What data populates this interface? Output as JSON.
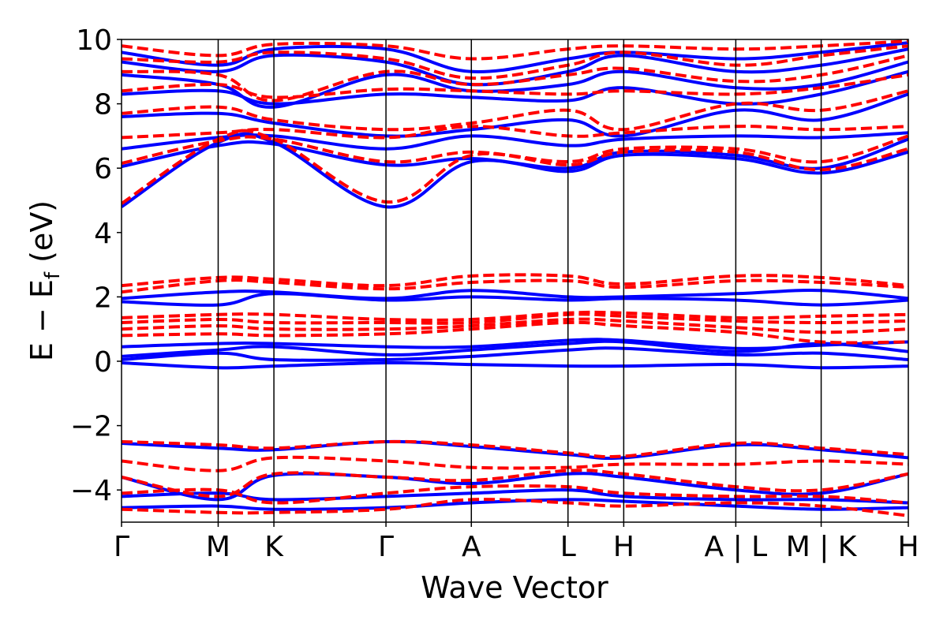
{
  "chart_data": {
    "type": "line",
    "title": "",
    "xlabel": "Wave Vector",
    "ylabel": "E − E_f (eV)",
    "ylabel_main": "E − E",
    "ylabel_sub": "f",
    "ylabel_unit": " (eV)",
    "ylim": [
      -5,
      10
    ],
    "yticks": [
      -4,
      -2,
      0,
      2,
      4,
      6,
      8,
      10
    ],
    "ytick_labels": [
      "−4",
      "−2",
      "0",
      "2",
      "4",
      "6",
      "8",
      "10"
    ],
    "xlim": [
      0,
      13.27
    ],
    "kpath": [
      {
        "label": "Γ",
        "x": 0.0
      },
      {
        "label": "M",
        "x": 1.63
      },
      {
        "label": "K",
        "x": 2.57
      },
      {
        "label": "Γ",
        "x": 4.46
      },
      {
        "label": "A",
        "x": 5.9
      },
      {
        "label": "L",
        "x": 7.53
      },
      {
        "label": "H",
        "x": 8.47
      },
      {
        "label": "A | L",
        "x": 10.36
      },
      {
        "label": "M | K",
        "x": 11.8
      },
      {
        "label": "H",
        "x": 13.27
      }
    ],
    "grid": false,
    "legend": "none",
    "series": [
      {
        "style": "solid",
        "color": "#0000ff",
        "bands": [
          [
            -4.55,
            -4.5,
            -4.6,
            -4.55,
            -4.4,
            -4.3,
            -4.35,
            -4.5,
            -4.6,
            -4.55
          ],
          [
            -4.2,
            -4.1,
            -4.3,
            -4.2,
            -4.1,
            -4.0,
            -4.2,
            -4.3,
            -4.3,
            -4.4
          ],
          [
            -3.6,
            -4.3,
            -3.55,
            -3.6,
            -3.8,
            -3.5,
            -3.6,
            -4.0,
            -4.1,
            -3.5
          ],
          [
            -2.55,
            -2.7,
            -2.75,
            -2.5,
            -2.65,
            -2.9,
            -3.0,
            -2.6,
            -2.75,
            -3.0
          ],
          [
            -0.05,
            -0.2,
            -0.15,
            -0.05,
            -0.1,
            -0.15,
            -0.15,
            -0.1,
            -0.2,
            -0.15
          ],
          [
            0.05,
            0.25,
            0.05,
            0.05,
            0.15,
            0.35,
            0.4,
            0.2,
            0.25,
            0.05
          ],
          [
            0.15,
            0.35,
            0.45,
            0.2,
            0.35,
            0.55,
            0.6,
            0.3,
            0.55,
            0.3
          ],
          [
            0.45,
            0.55,
            0.55,
            0.45,
            0.45,
            0.65,
            0.65,
            0.4,
            0.5,
            0.6
          ],
          [
            1.85,
            1.75,
            2.1,
            1.9,
            2.0,
            1.9,
            1.95,
            1.9,
            1.75,
            1.9
          ],
          [
            1.95,
            2.15,
            2.15,
            1.95,
            2.2,
            2.0,
            2.0,
            2.1,
            2.2,
            1.95
          ],
          [
            4.8,
            6.8,
            6.8,
            4.8,
            6.2,
            5.9,
            6.4,
            6.3,
            5.85,
            6.5
          ],
          [
            6.05,
            6.7,
            6.75,
            6.1,
            6.3,
            6.0,
            6.5,
            6.4,
            6.0,
            6.9
          ],
          [
            6.6,
            6.95,
            7.0,
            6.6,
            7.0,
            6.7,
            6.9,
            7.0,
            6.95,
            7.1
          ],
          [
            7.6,
            7.7,
            7.4,
            7.0,
            7.2,
            7.5,
            7.0,
            7.8,
            7.5,
            8.3
          ],
          [
            8.3,
            8.4,
            8.0,
            8.3,
            8.2,
            8.1,
            8.5,
            8.0,
            8.3,
            9.0
          ],
          [
            8.9,
            8.6,
            7.9,
            8.9,
            8.4,
            8.6,
            9.0,
            8.5,
            8.6,
            9.3
          ],
          [
            9.3,
            9.0,
            9.5,
            9.3,
            8.6,
            9.0,
            9.5,
            9.0,
            9.2,
            9.7
          ],
          [
            9.6,
            9.2,
            9.7,
            9.7,
            9.0,
            9.4,
            9.6,
            9.4,
            9.6,
            9.9
          ]
        ]
      },
      {
        "style": "dashed",
        "color": "#ff0000",
        "bands": [
          [
            -4.6,
            -4.7,
            -4.7,
            -4.6,
            -4.3,
            -4.4,
            -4.5,
            -4.4,
            -4.5,
            -4.8
          ],
          [
            -4.1,
            -4.0,
            -4.4,
            -4.1,
            -3.9,
            -3.9,
            -4.1,
            -4.2,
            -4.2,
            -4.4
          ],
          [
            -3.6,
            -4.2,
            -3.5,
            -3.6,
            -3.7,
            -3.4,
            -3.5,
            -3.9,
            -4.0,
            -3.5
          ],
          [
            -3.1,
            -3.4,
            -3.0,
            -3.1,
            -3.3,
            -3.3,
            -3.2,
            -3.2,
            -3.1,
            -3.2
          ],
          [
            -2.5,
            -2.6,
            -2.7,
            -2.5,
            -2.6,
            -2.85,
            -2.95,
            -2.55,
            -2.7,
            -2.9
          ],
          [
            0.8,
            0.85,
            0.8,
            0.85,
            1.0,
            1.2,
            1.1,
            0.9,
            0.6,
            0.6
          ],
          [
            1.0,
            1.1,
            1.0,
            1.0,
            1.1,
            1.3,
            1.25,
            1.05,
            0.9,
            1.0
          ],
          [
            1.2,
            1.3,
            1.2,
            1.2,
            1.2,
            1.45,
            1.4,
            1.25,
            1.2,
            1.25
          ],
          [
            1.35,
            1.45,
            1.45,
            1.3,
            1.3,
            1.5,
            1.5,
            1.35,
            1.4,
            1.45
          ],
          [
            2.15,
            2.5,
            2.45,
            2.25,
            2.45,
            2.5,
            2.3,
            2.5,
            2.45,
            2.3
          ],
          [
            2.35,
            2.6,
            2.55,
            2.35,
            2.65,
            2.65,
            2.4,
            2.65,
            2.6,
            2.35
          ],
          [
            4.9,
            6.9,
            6.9,
            4.95,
            6.4,
            6.1,
            6.5,
            6.5,
            5.95,
            6.6
          ],
          [
            6.15,
            6.85,
            6.9,
            6.2,
            6.5,
            6.2,
            6.6,
            6.6,
            6.2,
            7.0
          ],
          [
            6.95,
            7.1,
            7.2,
            6.95,
            7.3,
            7.0,
            7.1,
            7.3,
            7.2,
            7.3
          ],
          [
            7.7,
            7.9,
            7.5,
            7.2,
            7.4,
            7.8,
            7.2,
            8.0,
            7.8,
            8.4
          ],
          [
            8.4,
            8.6,
            8.2,
            8.45,
            8.4,
            8.3,
            8.4,
            8.3,
            8.5,
            8.9
          ],
          [
            9.0,
            8.9,
            8.1,
            9.0,
            8.6,
            8.9,
            9.1,
            8.7,
            8.9,
            9.5
          ],
          [
            9.4,
            9.3,
            9.6,
            9.4,
            8.8,
            9.2,
            9.6,
            9.2,
            9.5,
            9.8
          ],
          [
            9.8,
            9.5,
            9.85,
            9.8,
            9.4,
            9.7,
            9.8,
            9.7,
            9.8,
            9.95
          ]
        ]
      }
    ]
  }
}
